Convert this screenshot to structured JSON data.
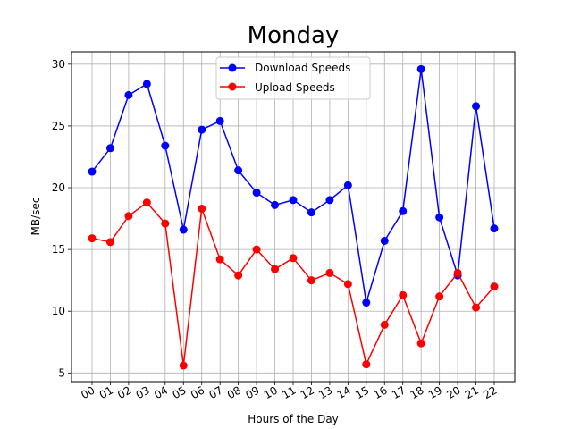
{
  "chart_data": {
    "type": "line",
    "title": "Monday",
    "xlabel": "Hours of the Day",
    "ylabel": "MB/sec",
    "categories": [
      "00",
      "01",
      "02",
      "03",
      "04",
      "05",
      "06",
      "07",
      "08",
      "09",
      "10",
      "11",
      "12",
      "13",
      "14",
      "15",
      "16",
      "17",
      "18",
      "19",
      "20",
      "21",
      "22"
    ],
    "yticks": [
      "5",
      "10",
      "15",
      "20",
      "25",
      "30"
    ],
    "ylim": [
      4.3,
      31.0
    ],
    "grid": true,
    "legend_position": "top-center",
    "series": [
      {
        "name": "Download Speeds",
        "color": "#0000ff",
        "values": [
          21.3,
          23.2,
          27.5,
          28.4,
          23.4,
          16.6,
          24.7,
          25.4,
          21.4,
          19.6,
          18.6,
          19.0,
          18.0,
          19.0,
          20.2,
          10.7,
          15.7,
          18.1,
          29.6,
          17.6,
          12.9,
          26.6,
          16.7
        ]
      },
      {
        "name": "Upload Speeds",
        "color": "#ff0000",
        "values": [
          15.9,
          15.6,
          17.7,
          18.8,
          17.1,
          5.6,
          18.3,
          14.2,
          12.9,
          15.0,
          13.4,
          14.3,
          12.5,
          13.1,
          12.2,
          5.7,
          8.9,
          11.3,
          7.4,
          11.2,
          13.1,
          10.3,
          12.0
        ]
      }
    ]
  }
}
